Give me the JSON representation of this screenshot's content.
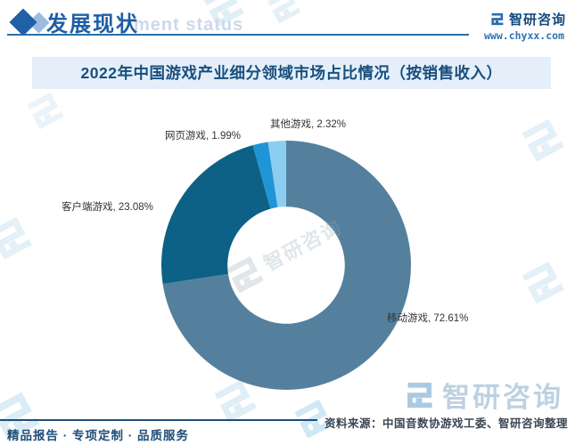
{
  "header": {
    "section_title": "发展现状",
    "watermark_text": "ment status",
    "brand_name": "智研咨询",
    "brand_url": "www.chyxx.com"
  },
  "chart_data": {
    "type": "pie",
    "subtype": "donut",
    "title": "2022年中国游戏产业细分领域市场占比情况（按销售收入）",
    "unit": "%",
    "categories": [
      "移动游戏",
      "客户端游戏",
      "网页游戏",
      "其他游戏"
    ],
    "values": [
      72.61,
      23.08,
      1.99,
      2.32
    ],
    "colors": [
      "#54809E",
      "#0D6086",
      "#2095D5",
      "#8CCEF0"
    ],
    "labels_display": [
      "移动游戏, 72.61%",
      "客户端游戏, 23.08%",
      "网页游戏, 1.99%",
      "其他游戏, 2.32%"
    ],
    "start_angle_deg": 0,
    "direction": "clockwise",
    "inner_radius_ratio": 0.47,
    "legend": "none",
    "labels_position": "outside"
  },
  "watermark": {
    "brand": "智研咨询"
  },
  "footer": {
    "services": "精品报告 · 专项定制 · 品质服务",
    "source": "资料来源：中国音数协游戏工委、智研咨询整理"
  }
}
